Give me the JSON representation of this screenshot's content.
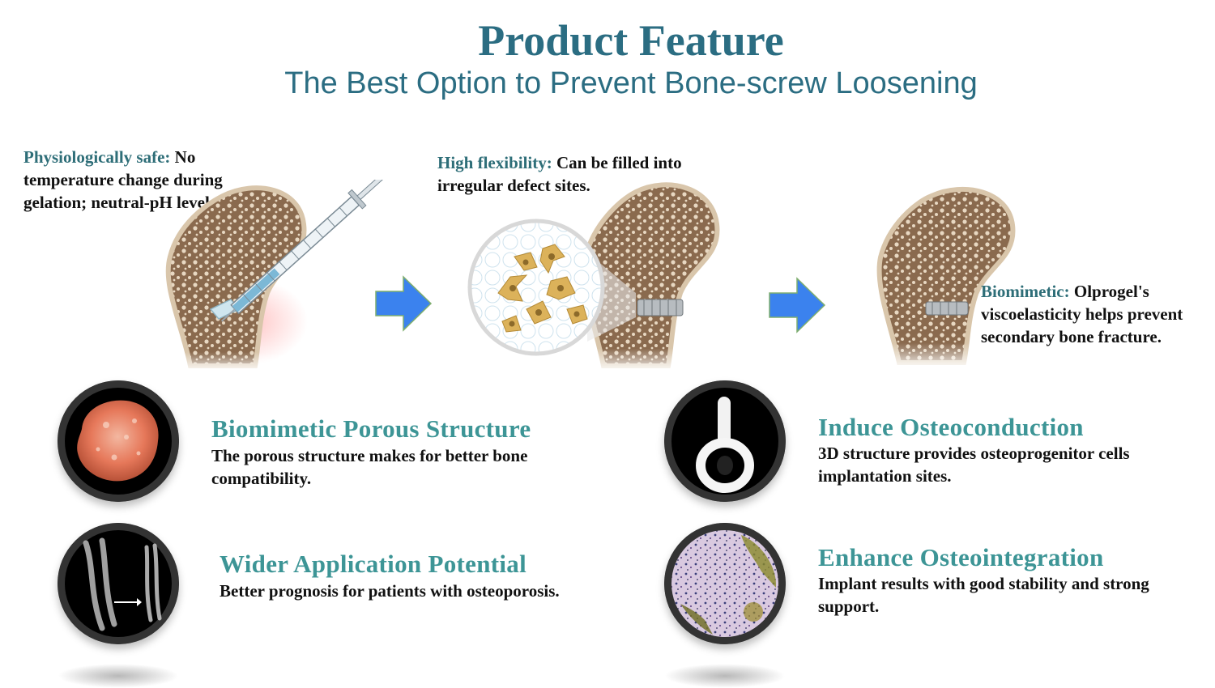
{
  "header": {
    "title": "Product Feature",
    "subtitle": "The Best Option to Prevent Bone-screw Loosening"
  },
  "steps": [
    {
      "label": "Physiologically safe:",
      "text": " No temperature change during gelation; neutral-pH level."
    },
    {
      "label": "High flexibility:",
      "text": " Can be filled into irregular defect sites."
    },
    {
      "label": "Biomimetic:",
      "text": " Olprogel's viscoelasticity helps prevent secondary bone fracture."
    }
  ],
  "features": [
    {
      "title": "Biomimetic Porous Structure",
      "desc": "The porous structure makes for better bone compatibility."
    },
    {
      "title": "Wider Application Potential",
      "desc": "Better prognosis for patients with osteoporosis."
    },
    {
      "title": "Induce Osteoconduction",
      "desc": "3D structure provides osteoprogenitor cells implantation sites."
    },
    {
      "title": "Enhance Osteointegration",
      "desc": "Implant results with good stability and strong support."
    }
  ],
  "colors": {
    "title": "#2b6d82",
    "label": "#2e6e78",
    "feature_title": "#3d9596",
    "arrow": "#3b82ee",
    "bone": "#8a6a4e",
    "bone_light": "#eadcc8"
  }
}
